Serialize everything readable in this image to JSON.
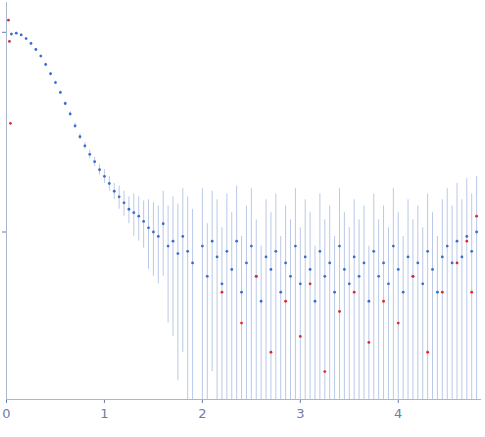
{
  "chart_data": {
    "type": "scatter",
    "log": "y",
    "tick_labels": "x",
    "grid": false,
    "xlim": [
      0,
      4.85
    ],
    "xticks": [
      0,
      1,
      2,
      3,
      4
    ],
    "ylim": [
      0.0145,
      1.41
    ],
    "yticks": [
      0.1,
      1
    ],
    "series": [
      {
        "color": "#3a6cc8",
        "marker": "circle",
        "x": [
          0.05,
          0.1,
          0.15,
          0.2,
          0.25,
          0.3,
          0.35,
          0.4,
          0.45,
          0.5,
          0.55,
          0.6,
          0.65,
          0.7,
          0.75,
          0.8,
          0.85,
          0.9,
          0.95,
          1.0,
          1.05,
          1.1,
          1.15,
          1.2,
          1.25,
          1.3,
          1.35,
          1.4,
          1.45,
          1.5,
          1.55,
          1.6,
          1.65,
          1.7,
          1.75,
          1.8,
          1.85,
          1.9,
          2.0,
          2.05,
          2.1,
          2.15,
          2.2,
          2.25,
          2.3,
          2.35,
          2.4,
          2.45,
          2.5,
          2.55,
          2.6,
          2.65,
          2.7,
          2.75,
          2.8,
          2.85,
          2.9,
          2.95,
          3.0,
          3.05,
          3.1,
          3.15,
          3.2,
          3.25,
          3.3,
          3.35,
          3.4,
          3.45,
          3.5,
          3.55,
          3.6,
          3.65,
          3.7,
          3.75,
          3.8,
          3.85,
          3.9,
          3.95,
          4.0,
          4.05,
          4.1,
          4.15,
          4.2,
          4.25,
          4.3,
          4.35,
          4.4,
          4.45,
          4.5,
          4.55,
          4.6,
          4.65,
          4.7,
          4.75,
          4.8
        ],
        "values": [
          0.98,
          0.99,
          0.97,
          0.93,
          0.88,
          0.82,
          0.76,
          0.69,
          0.62,
          0.56,
          0.5,
          0.44,
          0.39,
          0.34,
          0.3,
          0.27,
          0.245,
          0.225,
          0.205,
          0.19,
          0.175,
          0.16,
          0.15,
          0.14,
          0.13,
          0.125,
          0.12,
          0.113,
          0.105,
          0.1,
          0.095,
          0.11,
          0.085,
          0.09,
          0.078,
          0.095,
          0.08,
          0.07,
          0.085,
          0.06,
          0.09,
          0.075,
          0.055,
          0.08,
          0.065,
          0.09,
          0.05,
          0.07,
          0.085,
          0.06,
          0.045,
          0.075,
          0.065,
          0.08,
          0.05,
          0.07,
          0.06,
          0.085,
          0.055,
          0.075,
          0.065,
          0.045,
          0.08,
          0.06,
          0.07,
          0.05,
          0.085,
          0.065,
          0.055,
          0.075,
          0.06,
          0.07,
          0.045,
          0.08,
          0.06,
          0.07,
          0.055,
          0.085,
          0.065,
          0.05,
          0.075,
          0.06,
          0.07,
          0.055,
          0.08,
          0.065,
          0.05,
          0.075,
          0.085,
          0.07,
          0.09,
          0.075,
          0.095,
          0.08,
          0.1
        ],
        "errors": [
          0.02,
          0.01,
          0.01,
          0.01,
          0.01,
          0.01,
          0.01,
          0.01,
          0.01,
          0.01,
          0.01,
          0.01,
          0.01,
          0.01,
          0.01,
          0.01,
          0.012,
          0.012,
          0.012,
          0.015,
          0.015,
          0.015,
          0.02,
          0.02,
          0.02,
          0.03,
          0.03,
          0.03,
          0.04,
          0.04,
          0.04,
          0.05,
          0.05,
          0.06,
          0.06,
          0.07,
          0.07,
          0.06,
          0.08,
          0.05,
          0.07,
          0.07,
          0.05,
          0.075,
          0.06,
          0.08,
          0.045,
          0.065,
          0.08,
          0.055,
          0.04,
          0.07,
          0.06,
          0.075,
          0.045,
          0.065,
          0.055,
          0.08,
          0.05,
          0.07,
          0.06,
          0.04,
          0.075,
          0.055,
          0.065,
          0.045,
          0.08,
          0.06,
          0.05,
          0.07,
          0.055,
          0.065,
          0.04,
          0.075,
          0.055,
          0.065,
          0.05,
          0.08,
          0.06,
          0.045,
          0.07,
          0.055,
          0.065,
          0.05,
          0.075,
          0.06,
          0.045,
          0.07,
          0.08,
          0.065,
          0.085,
          0.07,
          0.09,
          0.075,
          0.09
        ]
      },
      {
        "color": "#e02828",
        "marker": "circle",
        "x": [
          0.02,
          0.03,
          0.04,
          2.2,
          2.4,
          2.55,
          2.7,
          2.85,
          3.0,
          3.1,
          3.25,
          3.4,
          3.55,
          3.7,
          3.85,
          4.0,
          4.15,
          4.3,
          4.45,
          4.6,
          4.7,
          4.75,
          4.8
        ],
        "values": [
          1.15,
          0.9,
          0.35,
          0.05,
          0.035,
          0.06,
          0.025,
          0.045,
          0.03,
          0.055,
          0.02,
          0.04,
          0.05,
          0.028,
          0.045,
          0.035,
          0.06,
          0.025,
          0.05,
          0.07,
          0.09,
          0.05,
          0.12
        ]
      }
    ]
  }
}
